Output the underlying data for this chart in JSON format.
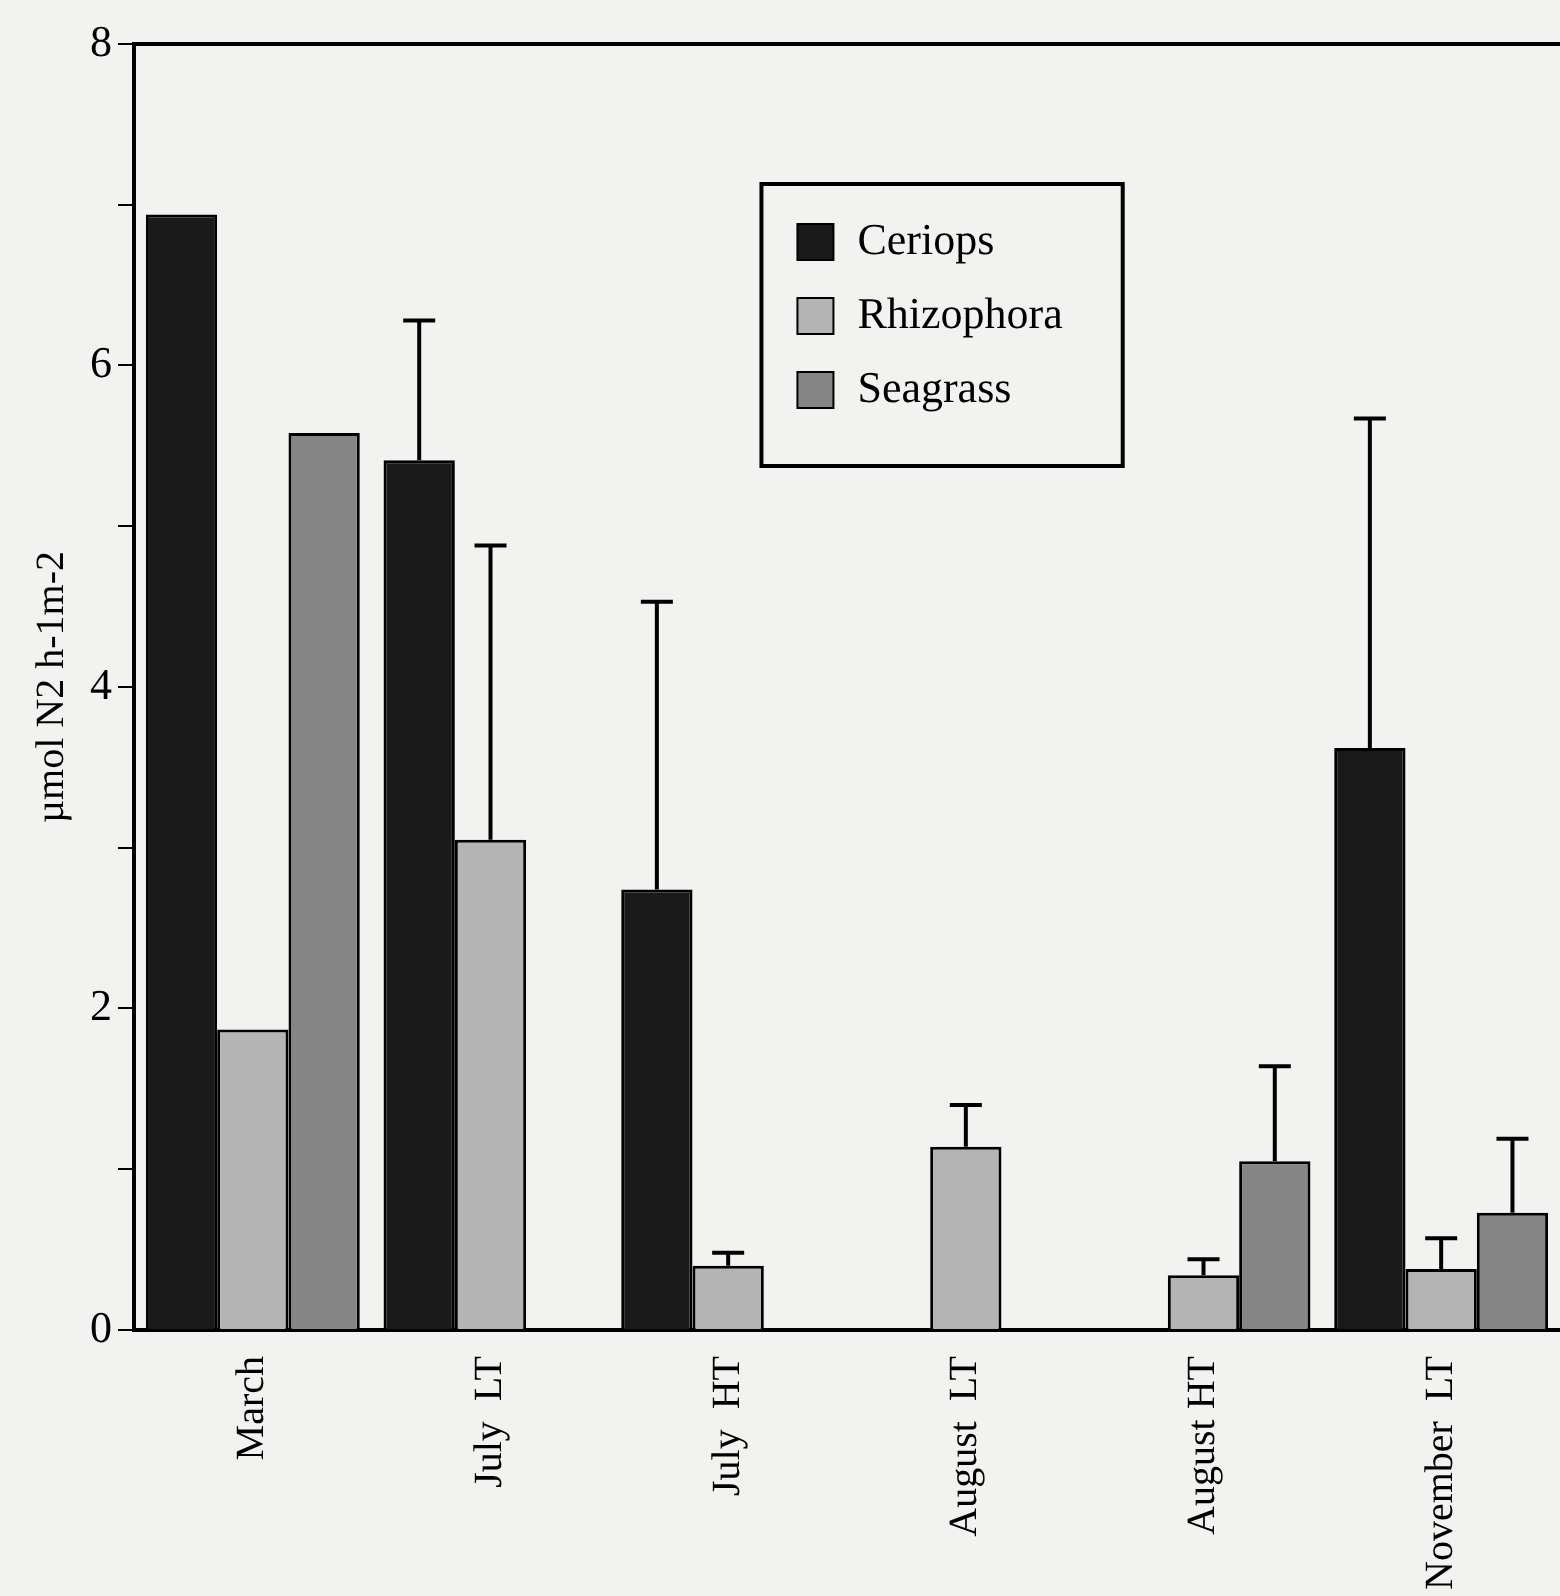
{
  "chart_data": {
    "type": "bar",
    "ylabel": "µmol N2 h-1m-2",
    "categories": [
      "March",
      "July  LT",
      "July  HT",
      "August  LT",
      "August HT",
      "November  LT"
    ],
    "series": [
      {
        "name": "Ceriops",
        "color": "#1a1a1a",
        "values": [
          6.94,
          5.41,
          2.74,
          null,
          null,
          3.62
        ],
        "errors": [
          null,
          [
            5.41,
            6.28
          ],
          [
            2.74,
            4.53
          ],
          null,
          null,
          [
            3.62,
            5.67
          ]
        ]
      },
      {
        "name": "Rhizophora",
        "color": "#b4b4b4",
        "values": [
          1.87,
          3.05,
          0.4,
          1.14,
          0.34,
          0.38
        ],
        "errors": [
          null,
          [
            3.05,
            4.88
          ],
          [
            0.4,
            0.48
          ],
          [
            1.14,
            1.4
          ],
          [
            0.34,
            0.44
          ],
          [
            0.38,
            0.57
          ]
        ]
      },
      {
        "name": "Seagrass",
        "color": "#858585",
        "values": [
          5.58,
          null,
          null,
          null,
          1.05,
          0.73
        ],
        "errors": [
          null,
          null,
          null,
          null,
          [
            1.05,
            1.64
          ],
          [
            0.73,
            1.19
          ]
        ]
      }
    ],
    "ylim": [
      0,
      8
    ],
    "yticks": [
      0,
      {
        "value": 1,
        "label": null
      },
      2,
      {
        "value": 3,
        "label": null
      },
      4,
      {
        "value": 5,
        "label": null
      },
      6,
      {
        "value": 7,
        "label": null
      },
      8
    ],
    "grid": false,
    "legend": "top right"
  }
}
